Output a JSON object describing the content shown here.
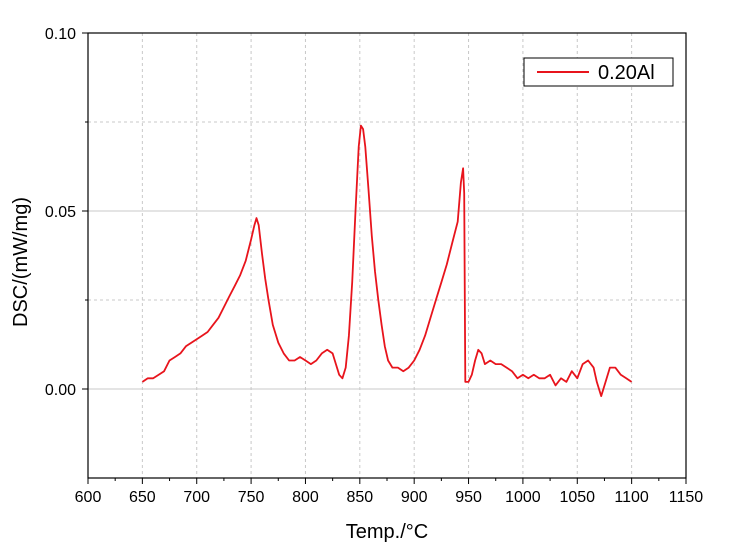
{
  "chart_data": {
    "type": "line",
    "xlabel": "Temp./°C",
    "ylabel": "DSC/(mW/mg)",
    "xlim": [
      600,
      1150
    ],
    "ylim": [
      -0.025,
      0.1
    ],
    "x_ticks": [
      "600",
      "650",
      "700",
      "750",
      "800",
      "850",
      "900",
      "950",
      "1000",
      "1050",
      "1100",
      "1150"
    ],
    "y_ticks": [
      "0.00",
      "0.05",
      "0.10"
    ],
    "grid": true,
    "legend": "top-right",
    "series": [
      {
        "name": "0.20Al",
        "color": "#e8141c",
        "points": [
          [
            650,
            0.002
          ],
          [
            655,
            0.003
          ],
          [
            660,
            0.003
          ],
          [
            665,
            0.004
          ],
          [
            670,
            0.005
          ],
          [
            675,
            0.008
          ],
          [
            680,
            0.009
          ],
          [
            685,
            0.01
          ],
          [
            690,
            0.012
          ],
          [
            695,
            0.013
          ],
          [
            700,
            0.014
          ],
          [
            705,
            0.015
          ],
          [
            710,
            0.016
          ],
          [
            715,
            0.018
          ],
          [
            720,
            0.02
          ],
          [
            725,
            0.023
          ],
          [
            730,
            0.026
          ],
          [
            735,
            0.029
          ],
          [
            740,
            0.032
          ],
          [
            745,
            0.036
          ],
          [
            750,
            0.042
          ],
          [
            753,
            0.046
          ],
          [
            755,
            0.048
          ],
          [
            757,
            0.046
          ],
          [
            760,
            0.038
          ],
          [
            763,
            0.031
          ],
          [
            766,
            0.025
          ],
          [
            770,
            0.018
          ],
          [
            775,
            0.013
          ],
          [
            780,
            0.01
          ],
          [
            785,
            0.008
          ],
          [
            790,
            0.008
          ],
          [
            795,
            0.009
          ],
          [
            800,
            0.008
          ],
          [
            805,
            0.007
          ],
          [
            810,
            0.008
          ],
          [
            815,
            0.01
          ],
          [
            820,
            0.011
          ],
          [
            825,
            0.01
          ],
          [
            828,
            0.007
          ],
          [
            831,
            0.004
          ],
          [
            834,
            0.003
          ],
          [
            837,
            0.006
          ],
          [
            840,
            0.015
          ],
          [
            843,
            0.03
          ],
          [
            846,
            0.05
          ],
          [
            849,
            0.068
          ],
          [
            851,
            0.074
          ],
          [
            853,
            0.073
          ],
          [
            855,
            0.068
          ],
          [
            858,
            0.056
          ],
          [
            861,
            0.043
          ],
          [
            864,
            0.033
          ],
          [
            867,
            0.025
          ],
          [
            870,
            0.018
          ],
          [
            873,
            0.012
          ],
          [
            876,
            0.008
          ],
          [
            880,
            0.006
          ],
          [
            885,
            0.006
          ],
          [
            890,
            0.005
          ],
          [
            895,
            0.006
          ],
          [
            900,
            0.008
          ],
          [
            905,
            0.011
          ],
          [
            910,
            0.015
          ],
          [
            915,
            0.02
          ],
          [
            920,
            0.025
          ],
          [
            925,
            0.03
          ],
          [
            930,
            0.035
          ],
          [
            935,
            0.041
          ],
          [
            940,
            0.047
          ],
          [
            943,
            0.058
          ],
          [
            945,
            0.062
          ],
          [
            946,
            0.055
          ],
          [
            947,
            0.002
          ],
          [
            950,
            0.002
          ],
          [
            953,
            0.004
          ],
          [
            956,
            0.008
          ],
          [
            959,
            0.011
          ],
          [
            962,
            0.01
          ],
          [
            965,
            0.007
          ],
          [
            970,
            0.008
          ],
          [
            975,
            0.007
          ],
          [
            980,
            0.007
          ],
          [
            985,
            0.006
          ],
          [
            990,
            0.005
          ],
          [
            995,
            0.003
          ],
          [
            1000,
            0.004
          ],
          [
            1005,
            0.003
          ],
          [
            1010,
            0.004
          ],
          [
            1015,
            0.003
          ],
          [
            1020,
            0.003
          ],
          [
            1025,
            0.004
          ],
          [
            1030,
            0.001
          ],
          [
            1035,
            0.003
          ],
          [
            1040,
            0.002
          ],
          [
            1045,
            0.005
          ],
          [
            1050,
            0.003
          ],
          [
            1055,
            0.007
          ],
          [
            1060,
            0.008
          ],
          [
            1065,
            0.006
          ],
          [
            1068,
            0.002
          ],
          [
            1072,
            -0.002
          ],
          [
            1075,
            0.001
          ],
          [
            1080,
            0.006
          ],
          [
            1085,
            0.006
          ],
          [
            1090,
            0.004
          ],
          [
            1095,
            0.003
          ],
          [
            1100,
            0.002
          ]
        ]
      }
    ]
  }
}
